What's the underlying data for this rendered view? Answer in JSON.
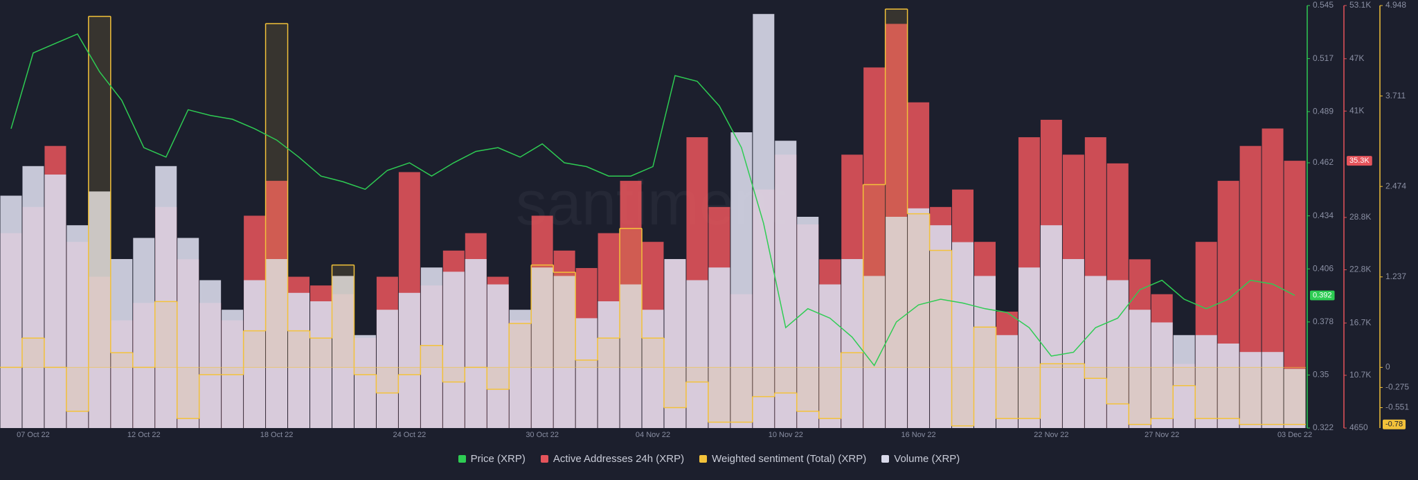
{
  "chart_data": {
    "type": "combo",
    "watermark": "santiment",
    "x": [
      "06 Oct 22",
      "07 Oct 22",
      "08 Oct 22",
      "09 Oct 22",
      "10 Oct 22",
      "11 Oct 22",
      "12 Oct 22",
      "13 Oct 22",
      "14 Oct 22",
      "15 Oct 22",
      "16 Oct 22",
      "17 Oct 22",
      "18 Oct 22",
      "19 Oct 22",
      "20 Oct 22",
      "21 Oct 22",
      "22 Oct 22",
      "23 Oct 22",
      "24 Oct 22",
      "25 Oct 22",
      "26 Oct 22",
      "27 Oct 22",
      "28 Oct 22",
      "29 Oct 22",
      "30 Oct 22",
      "31 Oct 22",
      "01 Nov 22",
      "02 Nov 22",
      "03 Nov 22",
      "04 Nov 22",
      "05 Nov 22",
      "06 Nov 22",
      "07 Nov 22",
      "08 Nov 22",
      "09 Nov 22",
      "10 Nov 22",
      "11 Nov 22",
      "12 Nov 22",
      "13 Nov 22",
      "14 Nov 22",
      "15 Nov 22",
      "16 Nov 22",
      "17 Nov 22",
      "18 Nov 22",
      "19 Nov 22",
      "20 Nov 22",
      "21 Nov 22",
      "22 Nov 22",
      "23 Nov 22",
      "24 Nov 22",
      "25 Nov 22",
      "26 Nov 22",
      "27 Nov 22",
      "28 Nov 22",
      "29 Nov 22",
      "30 Nov 22",
      "01 Dec 22",
      "02 Dec 22",
      "03 Dec 22"
    ],
    "xticks": [
      "07 Oct 22",
      "12 Oct 22",
      "18 Oct 22",
      "24 Oct 22",
      "30 Oct 22",
      "04 Nov 22",
      "10 Nov 22",
      "16 Nov 22",
      "22 Nov 22",
      "27 Nov 22",
      "03 Dec 22"
    ],
    "axes": {
      "price": {
        "lim": [
          0.322,
          0.545
        ],
        "ticks": [
          0.545,
          0.517,
          0.489,
          0.462,
          0.434,
          0.406,
          0.378,
          0.35,
          0.322
        ],
        "color": "#2ecc53"
      },
      "addresses": {
        "lim": [
          4650,
          53100
        ],
        "ticks": [
          {
            "value": 53100,
            "label": "53.1K"
          },
          {
            "value": 47000,
            "label": "47K"
          },
          {
            "value": 41000,
            "label": "41K"
          },
          {
            "value": 28800,
            "label": "28.8K"
          },
          {
            "value": 22800,
            "label": "22.8K"
          },
          {
            "value": 16700,
            "label": "16.7K"
          },
          {
            "value": 10700,
            "label": "10.7K"
          },
          4650
        ],
        "color": "#e5545b"
      },
      "sentiment": {
        "lim": [
          -0.83,
          4.948
        ],
        "ticks": [
          4.948,
          3.711,
          2.474,
          1.237,
          0,
          -0.275,
          -0.551
        ],
        "color": "#f3c23a"
      },
      "volume": {
        "lim": [
          0,
          100
        ]
      }
    },
    "series": [
      {
        "name": "Price (XRP)",
        "axis": "price",
        "kind": "line",
        "color": "#2ecc53",
        "last_label": "0.392",
        "values": [
          0.48,
          0.52,
          0.525,
          0.53,
          0.51,
          0.495,
          0.47,
          0.465,
          0.49,
          0.487,
          0.485,
          0.48,
          0.474,
          0.465,
          0.455,
          0.452,
          0.448,
          0.458,
          0.462,
          0.455,
          0.462,
          0.468,
          0.47,
          0.465,
          0.472,
          0.462,
          0.46,
          0.455,
          0.455,
          0.46,
          0.508,
          0.505,
          0.492,
          0.47,
          0.43,
          0.375,
          0.385,
          0.38,
          0.37,
          0.355,
          0.378,
          0.387,
          0.39,
          0.388,
          0.385,
          0.383,
          0.375,
          0.36,
          0.362,
          0.375,
          0.38,
          0.395,
          0.4,
          0.39,
          0.385,
          0.39,
          0.4,
          0.398,
          0.392
        ]
      },
      {
        "name": "Active Addresses 24h (XRP)",
        "axis": "addresses",
        "kind": "bar",
        "color": "#e5545b",
        "last_label": "35.3K",
        "values": [
          27000,
          30000,
          37000,
          26000,
          22000,
          17000,
          19000,
          30000,
          24000,
          19000,
          17000,
          29000,
          33000,
          22000,
          21000,
          20000,
          15000,
          22000,
          34000,
          21000,
          25000,
          27000,
          22000,
          17000,
          29000,
          25000,
          23000,
          27000,
          33000,
          26000,
          24000,
          38000,
          30000,
          20000,
          32000,
          36000,
          28000,
          24000,
          36000,
          46000,
          51000,
          42000,
          30000,
          32000,
          26000,
          18000,
          38000,
          40000,
          36000,
          38000,
          35000,
          24000,
          20000,
          12000,
          26000,
          33000,
          37000,
          39000,
          35300
        ]
      },
      {
        "name": "Weighted sentiment (Total) (XRP)",
        "axis": "sentiment",
        "kind": "step",
        "color": "#f3c23a",
        "last_label": "-0.78",
        "values": [
          0,
          0.4,
          0,
          -0.6,
          4.8,
          0.2,
          0,
          0.9,
          -0.7,
          -0.1,
          -0.1,
          0.5,
          4.7,
          0.5,
          0.4,
          1.4,
          -0.1,
          -0.35,
          -0.1,
          0.3,
          -0.2,
          0,
          -0.3,
          0.6,
          1.4,
          1.3,
          0.1,
          0.4,
          1.9,
          0.4,
          -0.55,
          -0.2,
          -0.75,
          -0.75,
          -0.4,
          -0.35,
          -0.6,
          -0.7,
          0.2,
          2.5,
          4.9,
          2.1,
          1.6,
          -0.8,
          0.55,
          -0.7,
          -0.7,
          0.05,
          0.05,
          -0.15,
          -0.5,
          -0.78,
          -0.7,
          -0.25,
          -0.7,
          -0.7,
          -0.78,
          -0.78,
          -0.78
        ]
      },
      {
        "name": "Volume (XRP)",
        "axis": "volume",
        "kind": "bar",
        "color": "#d9d9ea",
        "values": [
          55,
          62,
          60,
          48,
          56,
          40,
          45,
          62,
          45,
          35,
          28,
          35,
          40,
          32,
          30,
          36,
          22,
          28,
          32,
          38,
          37,
          40,
          34,
          28,
          38,
          36,
          26,
          30,
          34,
          28,
          40,
          35,
          38,
          70,
          98,
          68,
          50,
          34,
          40,
          36,
          50,
          52,
          48,
          44,
          36,
          22,
          38,
          48,
          40,
          36,
          35,
          28,
          25,
          22,
          22,
          20,
          18,
          18,
          14
        ]
      }
    ]
  }
}
